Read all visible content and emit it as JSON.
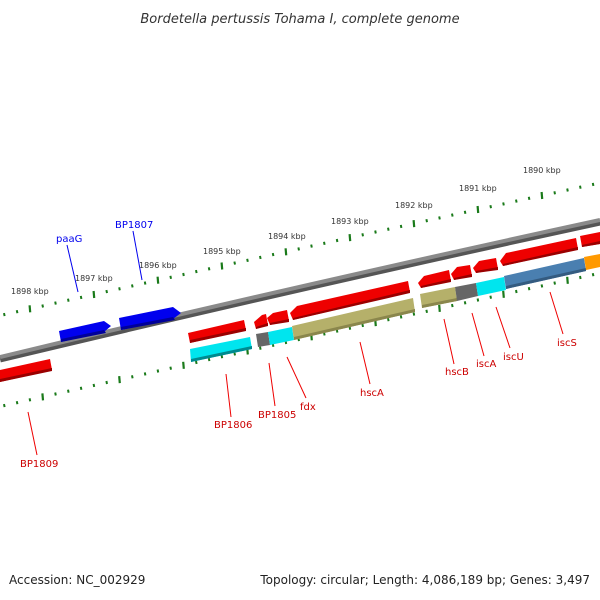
{
  "title": "Bordetella pertussis Tohama I, complete genome",
  "footer": {
    "accession": "Accession: NC_002929",
    "summary": "Topology: circular; Length: 4,086,189 bp; Genes: 3,497"
  },
  "scale_labels": [
    "1890 kbp",
    "1891 kbp",
    "1892 kbp",
    "1893 kbp",
    "1894 kbp",
    "1895 kbp",
    "1896 kbp",
    "1897 kbp",
    "1898 kbp"
  ],
  "genes": [
    {
      "name": "paaG",
      "strand": "forward",
      "feature": "CDS"
    },
    {
      "name": "BP1807",
      "strand": "forward",
      "feature": "CDS"
    },
    {
      "name": "BP1809",
      "strand": "reverse",
      "feature": "CDS"
    },
    {
      "name": "BP1806",
      "strand": "reverse",
      "feature": "CDS"
    },
    {
      "name": "BP1805",
      "strand": "reverse",
      "feature": "CDS"
    },
    {
      "name": "fdx",
      "strand": "reverse",
      "feature": "CDS"
    },
    {
      "name": "hscA",
      "strand": "reverse",
      "feature": "CDS"
    },
    {
      "name": "hscB",
      "strand": "reverse",
      "feature": "CDS"
    },
    {
      "name": "iscA",
      "strand": "reverse",
      "feature": "CDS"
    },
    {
      "name": "iscU",
      "strand": "reverse",
      "feature": "CDS"
    },
    {
      "name": "iscS",
      "strand": "reverse",
      "feature": "CDS"
    }
  ],
  "colors": {
    "forward_gene": "#0000ee",
    "reverse_gene": "#ee0000",
    "backbone": "#777777",
    "tick": "#1a7a1a",
    "cog_cyan": "#00e5ee",
    "cog_olive": "#b5b06a",
    "cog_gray": "#666666",
    "cog_steelblue": "#4a7fb0",
    "cog_orange": "#ff9900"
  }
}
